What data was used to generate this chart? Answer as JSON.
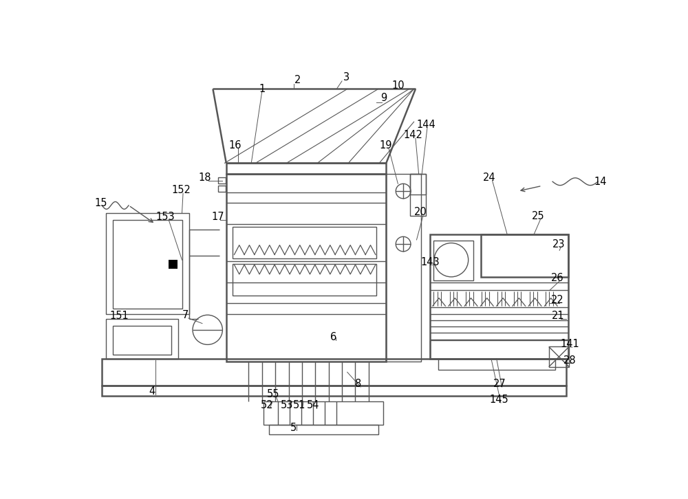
{
  "line_color": "#555555",
  "lw": 1.0,
  "tlw": 1.8,
  "fig_width": 10.0,
  "fig_height": 7.26
}
